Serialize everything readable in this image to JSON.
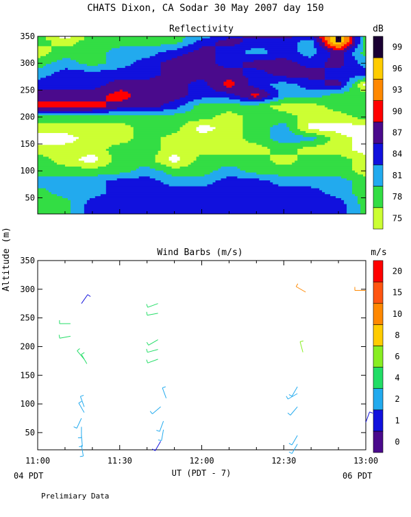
{
  "title": "CHATS Dixon, CA  Sodar  30 May 2007  day 150",
  "ylabel": "Altitude (m)",
  "xlabel": "UT  (PDT - 7)",
  "pdt_left": "04 PDT",
  "pdt_right": "06 PDT",
  "footnote": "Prelimiary Data",
  "chart_data": [
    {
      "type": "heatmap",
      "title": "Reflectivity",
      "colorbar_title": "dB",
      "colorbar_ticks": [
        "75",
        "78",
        "81",
        "84",
        "87",
        "90",
        "93",
        "96",
        "99"
      ],
      "colors": [
        "#ccff33",
        "#33dd44",
        "#22aaee",
        "#1111dd",
        "#4a0a8c",
        "#ff0000",
        "#ff8800",
        "#ffcc00",
        "#1a0033",
        "#ffffff"
      ],
      "x_ticks": [
        "11:00",
        "11:30",
        "12:00",
        "12:30",
        "13:00"
      ],
      "xlim": [
        "11:00",
        "13:00"
      ],
      "y_ticks": [
        50,
        100,
        150,
        200,
        250,
        300,
        350
      ],
      "ylim": [
        20,
        350
      ],
      "altitudes": [
        40,
        60,
        80,
        100,
        120,
        140,
        160,
        180,
        200,
        220,
        240,
        260,
        280,
        300,
        320,
        340,
        350
      ],
      "times": [
        "11:00",
        "11:10",
        "11:20",
        "11:30",
        "11:40",
        "11:50",
        "12:00",
        "12:10",
        "12:20",
        "12:30",
        "12:40",
        "12:50",
        "13:00"
      ],
      "level_grid": [
        [
          1,
          1,
          3,
          3,
          3,
          3,
          3,
          3,
          3,
          3,
          3,
          3,
          1
        ],
        [
          1,
          2,
          2,
          3,
          3,
          3,
          3,
          3,
          3,
          3,
          3,
          2,
          1
        ],
        [
          2,
          2,
          2,
          3,
          3,
          2,
          2,
          3,
          3,
          2,
          2,
          2,
          1
        ],
        [
          1,
          1,
          1,
          1,
          2,
          1,
          1,
          2,
          1,
          1,
          1,
          1,
          0
        ],
        [
          1,
          0,
          9,
          1,
          1,
          9,
          1,
          1,
          1,
          0,
          1,
          1,
          0
        ],
        [
          0,
          0,
          0,
          1,
          1,
          0,
          0,
          0,
          0,
          1,
          0,
          0,
          9
        ],
        [
          9,
          9,
          0,
          0,
          1,
          0,
          0,
          0,
          1,
          2,
          2,
          0,
          9
        ],
        [
          0,
          0,
          0,
          0,
          1,
          1,
          9,
          0,
          1,
          2,
          9,
          9,
          9
        ],
        [
          1,
          1,
          1,
          1,
          1,
          1,
          1,
          0,
          1,
          1,
          0,
          0,
          1
        ],
        [
          5,
          5,
          5,
          4,
          4,
          3,
          1,
          1,
          1,
          0,
          0,
          1,
          1
        ],
        [
          4,
          4,
          4,
          5,
          4,
          4,
          3,
          3,
          5,
          2,
          2,
          1,
          1
        ],
        [
          3,
          3,
          3,
          4,
          4,
          4,
          3,
          5,
          3,
          2,
          3,
          4,
          9
        ],
        [
          2,
          3,
          3,
          3,
          3,
          4,
          4,
          4,
          3,
          4,
          4,
          3,
          3
        ],
        [
          1,
          2,
          1,
          2,
          3,
          4,
          4,
          3,
          4,
          4,
          3,
          4,
          2
        ],
        [
          0,
          1,
          1,
          2,
          2,
          3,
          4,
          3,
          2,
          3,
          2,
          4,
          1
        ],
        [
          1,
          0,
          1,
          1,
          1,
          1,
          3,
          4,
          3,
          3,
          2,
          8,
          1
        ],
        [
          1,
          9,
          1,
          1,
          1,
          1,
          2,
          3,
          4,
          4,
          3,
          8,
          1
        ]
      ]
    },
    {
      "type": "scatter",
      "title": "Wind Barbs (m/s)",
      "colorbar_title": "m/s",
      "colorbar_ticks": [
        "0",
        "1",
        "2",
        "4",
        "6",
        "8",
        "10",
        "15",
        "20"
      ],
      "colors": [
        "#4a0a8c",
        "#1111dd",
        "#22aaee",
        "#22dd66",
        "#88ee22",
        "#ffcc00",
        "#ff8800",
        "#ff5511",
        "#ff0000"
      ],
      "x_ticks": [
        "11:00",
        "11:30",
        "12:00",
        "12:30",
        "13:00"
      ],
      "xlim": [
        "11:00",
        "13:00"
      ],
      "y_ticks": [
        50,
        100,
        150,
        200,
        250,
        300,
        350
      ],
      "ylim": [
        20,
        350
      ],
      "barbs": [
        {
          "t": "11:16",
          "z": 28,
          "dir": 170,
          "spd": 2
        },
        {
          "t": "11:16",
          "z": 45,
          "dir": 175,
          "spd": 2
        },
        {
          "t": "11:16",
          "z": 60,
          "dir": 180,
          "spd": 2
        },
        {
          "t": "11:16",
          "z": 75,
          "dir": 205,
          "spd": 2
        },
        {
          "t": "11:17",
          "z": 85,
          "dir": 330,
          "spd": 3
        },
        {
          "t": "11:17",
          "z": 95,
          "dir": 340,
          "spd": 3
        },
        {
          "t": "11:18",
          "z": 170,
          "dir": 330,
          "spd": 4
        },
        {
          "t": "11:17",
          "z": 178,
          "dir": 320,
          "spd": 4
        },
        {
          "t": "11:12",
          "z": 218,
          "dir": 260,
          "spd": 4
        },
        {
          "t": "11:12",
          "z": 240,
          "dir": 270,
          "spd": 4
        },
        {
          "t": "11:16",
          "z": 275,
          "dir": 35,
          "spd": 1
        },
        {
          "t": "11:45",
          "z": 35,
          "dir": 210,
          "spd": 1
        },
        {
          "t": "11:46",
          "z": 55,
          "dir": 190,
          "spd": 2
        },
        {
          "t": "11:46",
          "z": 70,
          "dir": 200,
          "spd": 3
        },
        {
          "t": "11:45",
          "z": 95,
          "dir": 230,
          "spd": 3
        },
        {
          "t": "11:47",
          "z": 110,
          "dir": 340,
          "spd": 2
        },
        {
          "t": "11:44",
          "z": 178,
          "dir": 250,
          "spd": 5
        },
        {
          "t": "11:44",
          "z": 195,
          "dir": 255,
          "spd": 5
        },
        {
          "t": "11:44",
          "z": 212,
          "dir": 240,
          "spd": 5
        },
        {
          "t": "11:44",
          "z": 258,
          "dir": 260,
          "spd": 4
        },
        {
          "t": "11:44",
          "z": 275,
          "dir": 250,
          "spd": 4
        },
        {
          "t": "12:35",
          "z": 30,
          "dir": 210,
          "spd": 2
        },
        {
          "t": "12:35",
          "z": 45,
          "dir": 210,
          "spd": 2
        },
        {
          "t": "12:35",
          "z": 95,
          "dir": 220,
          "spd": 3
        },
        {
          "t": "12:35",
          "z": 118,
          "dir": 240,
          "spd": 2
        },
        {
          "t": "12:35",
          "z": 130,
          "dir": 210,
          "spd": 2
        },
        {
          "t": "12:37",
          "z": 190,
          "dir": 345,
          "spd": 6
        },
        {
          "t": "12:38",
          "z": 295,
          "dir": 300,
          "spd": 11
        },
        {
          "t": "13:00",
          "z": 68,
          "dir": 20,
          "spd": 1
        },
        {
          "t": "13:00",
          "z": 298,
          "dir": 270,
          "spd": 14
        }
      ]
    }
  ]
}
